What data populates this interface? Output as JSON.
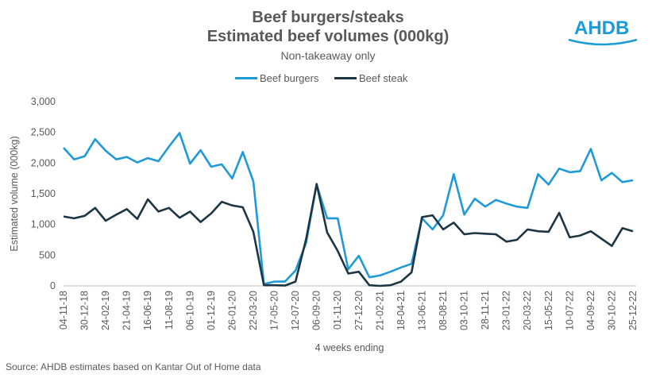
{
  "logo_text": "AHDB",
  "source": "Source: AHDB estimates based on Kantar Out of Home data",
  "colors": {
    "burgers": "#1f9ad6",
    "steak": "#1d3643",
    "axis": "#bfbfbf"
  },
  "chart_data": {
    "type": "line",
    "title_line1": "Beef burgers/steaks",
    "title_line2": "Estimated beef volumes (000kg)",
    "subtitle": "Non-takeaway only",
    "xlabel": "4 weeks ending",
    "ylabel": "Estimated volume (000kg)",
    "ylim": [
      0,
      3000
    ],
    "yticks": [
      0,
      500,
      1000,
      1500,
      2000,
      2500,
      3000
    ],
    "ytick_labels": [
      "0",
      "500",
      "1,000",
      "1,500",
      "2,000",
      "2,500",
      "3,000"
    ],
    "x_tick_labels": [
      "04-11-18",
      "30-12-18",
      "24-02-19",
      "21-04-19",
      "16-06-19",
      "11-08-19",
      "06-10-19",
      "01-12-19",
      "26-01-20",
      "22-03-20",
      "17-05-20",
      "12-07-20",
      "06-09-20",
      "01-11-20",
      "27-12-20",
      "21-02-21",
      "18-04-21",
      "13-06-21",
      "08-08-21",
      "03-10-21",
      "28-11-21",
      "23-01-22",
      "20-03-22",
      "15-05-22",
      "10-07-22",
      "04-09-22",
      "30-10-22",
      "25-12-22"
    ],
    "series": [
      {
        "name": "Beef burgers",
        "values": [
          2250,
          2060,
          2110,
          2390,
          2200,
          2060,
          2100,
          2010,
          2080,
          2030,
          2270,
          2490,
          1990,
          2210,
          1940,
          1980,
          1750,
          2180,
          1700,
          30,
          70,
          70,
          250,
          700,
          1650,
          1100,
          1100,
          270,
          490,
          140,
          170,
          230,
          300,
          360,
          1100,
          920,
          1150,
          1820,
          1160,
          1420,
          1290,
          1400,
          1340,
          1290,
          1270,
          1820,
          1650,
          1910,
          1850,
          1870,
          2230,
          1720,
          1840,
          1690,
          1720
        ]
      },
      {
        "name": "Beef steak",
        "values": [
          1130,
          1100,
          1140,
          1270,
          1060,
          1160,
          1250,
          1090,
          1410,
          1210,
          1270,
          1110,
          1210,
          1040,
          1180,
          1370,
          1310,
          1280,
          880,
          10,
          10,
          5,
          70,
          760,
          1660,
          870,
          570,
          200,
          230,
          10,
          0,
          10,
          70,
          220,
          1120,
          1150,
          920,
          1030,
          840,
          860,
          850,
          840,
          720,
          750,
          920,
          890,
          880,
          1190,
          790,
          820,
          890,
          770,
          650,
          940,
          890
        ]
      }
    ]
  }
}
